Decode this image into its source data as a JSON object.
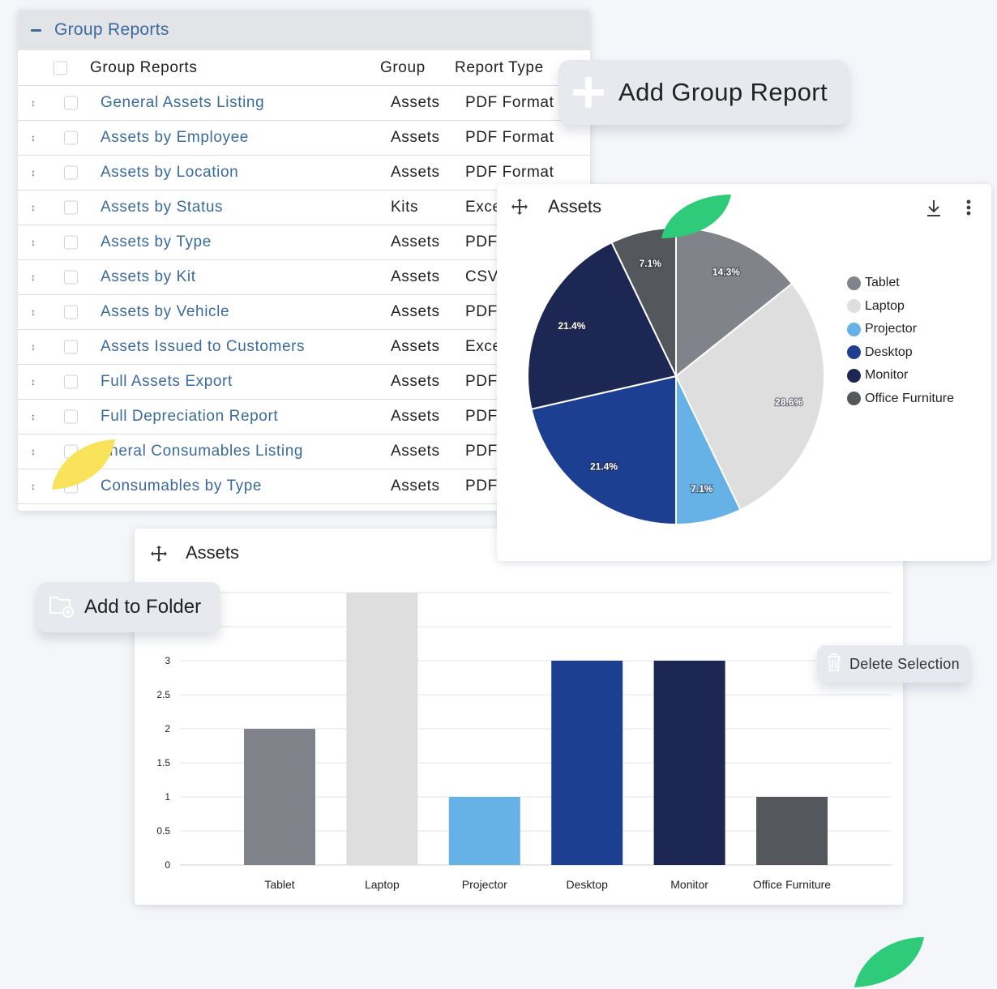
{
  "reports": {
    "header_title": "Group Reports",
    "columns": {
      "name": "Group Reports",
      "group": "Group",
      "type": "Report Type"
    },
    "rows": [
      {
        "name": "General Assets Listing",
        "group": "Assets",
        "type": "PDF Format"
      },
      {
        "name": "Assets by Employee",
        "group": "Assets",
        "type": "PDF Format"
      },
      {
        "name": "Assets by Location",
        "group": "Assets",
        "type": "PDF Format"
      },
      {
        "name": "Assets by Status",
        "group": "Kits",
        "type": "Exce"
      },
      {
        "name": "Assets by Type",
        "group": "Assets",
        "type": "PDF"
      },
      {
        "name": "Assets by Kit",
        "group": "Assets",
        "type": "CSV"
      },
      {
        "name": "Assets by Vehicle",
        "group": "Assets",
        "type": "PDF"
      },
      {
        "name": "Assets Issued to Customers",
        "group": "Assets",
        "type": "Exce"
      },
      {
        "name": "Full Assets Export",
        "group": "Assets",
        "type": "PDF"
      },
      {
        "name": "Full Depreciation Report",
        "group": "Assets",
        "type": "PDF"
      },
      {
        "name": "eneral Consumables Listing",
        "group": "Assets",
        "type": "PDF"
      },
      {
        "name": "Consumables by Type",
        "group": "Assets",
        "type": "PDF"
      }
    ]
  },
  "buttons": {
    "add_group_report": "Add Group Report",
    "add_to_folder": "Add to Folder",
    "delete_selection": "Delete Selection"
  },
  "pie_panel": {
    "title": "Assets"
  },
  "bar_panel": {
    "title": "Assets"
  },
  "colors": {
    "Tablet": "#80838a",
    "Laptop": "#dededf",
    "Projector": "#66b2e6",
    "Desktop": "#1c3f91",
    "Monitor": "#1c2753",
    "Office Furniture": "#54575c",
    "link": "#3b6a9c",
    "leaf_green": "#2ecc7a",
    "leaf_yellow": "#f8e35a"
  },
  "chart_data": [
    {
      "type": "pie",
      "categories": [
        "Tablet",
        "Laptop",
        "Projector",
        "Desktop",
        "Monitor",
        "Office Furniture"
      ],
      "values": [
        2,
        4,
        1,
        3,
        3,
        1
      ],
      "percent_labels": [
        "14.3%",
        "28.6%",
        "7.1%",
        "21.4%",
        "21.4%",
        "7.1%"
      ],
      "legend": [
        "Tablet",
        "Laptop",
        "Projector",
        "Desktop",
        "Monitor",
        "Office Furniture"
      ],
      "legend_position": "right"
    },
    {
      "type": "bar",
      "categories": [
        "Tablet",
        "Laptop",
        "Projector",
        "Desktop",
        "Monitor",
        "Office Furniture"
      ],
      "values": [
        2,
        4,
        1,
        3,
        3,
        1
      ],
      "yticks": [
        "0",
        "0.5",
        "1",
        "1.5",
        "2",
        "2.5",
        "3"
      ],
      "ylim": [
        0,
        4
      ],
      "grid": true
    }
  ]
}
